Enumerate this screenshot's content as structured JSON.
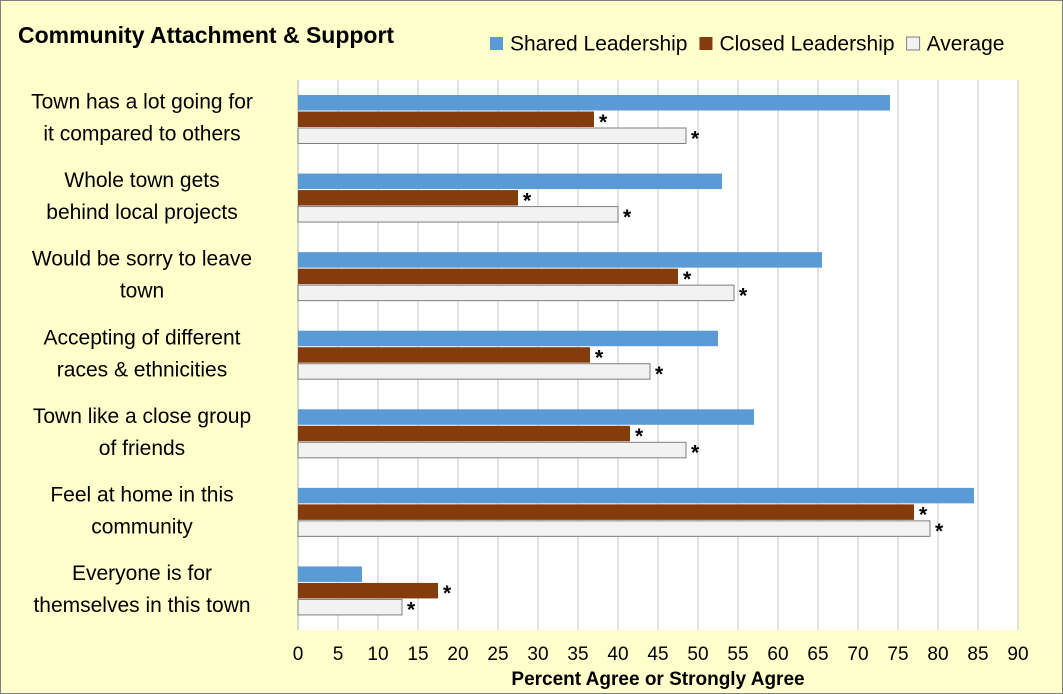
{
  "chart_data": {
    "type": "hbar",
    "title": "Community Attachment & Support",
    "categories": [
      [
        "Town has a lot going for",
        "it compared to others"
      ],
      [
        "Whole town gets",
        "behind local projects"
      ],
      [
        "Would be sorry to leave",
        "town"
      ],
      [
        "Accepting of different",
        "races & ethnicities"
      ],
      [
        "Town like a close group",
        "of friends"
      ],
      [
        "Feel at home in this",
        "community"
      ],
      [
        "Everyone is for",
        "themselves in this town"
      ]
    ],
    "series": [
      {
        "name": "Shared Leadership",
        "color": "#5b9bd5",
        "values": [
          74,
          53,
          65.5,
          52.5,
          57,
          84.5,
          8
        ]
      },
      {
        "name": "Closed Leadership",
        "color": "#843c0c",
        "values": [
          37,
          27.5,
          47.5,
          36.5,
          41.5,
          77,
          17.5
        ],
        "annotation": "*"
      },
      {
        "name": "Average",
        "color": "#f2f2f2",
        "values": [
          48.5,
          40,
          54.5,
          44,
          48.5,
          79,
          13
        ],
        "annotation": "*"
      }
    ],
    "xlabel": "Percent Agree or Strongly Agree",
    "xlim": [
      0,
      90
    ],
    "xticks": [
      0,
      5,
      10,
      15,
      20,
      25,
      30,
      35,
      40,
      45,
      50,
      55,
      60,
      65,
      70,
      75,
      80,
      85,
      90
    ],
    "grid": true,
    "legend": "top"
  }
}
